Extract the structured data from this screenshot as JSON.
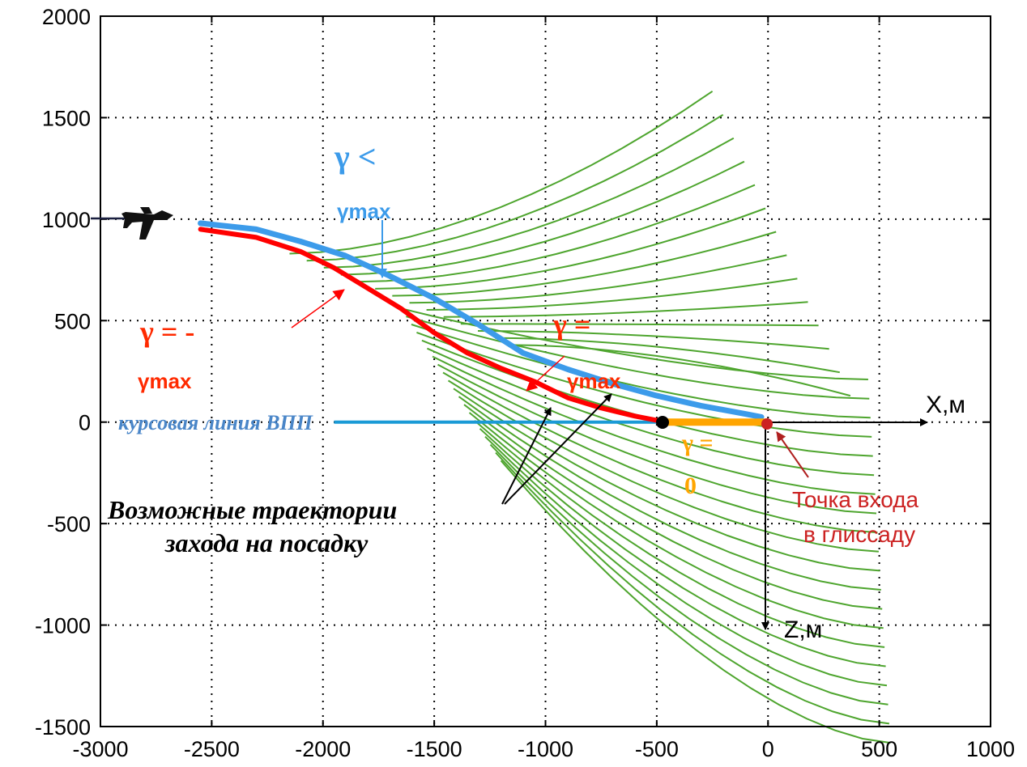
{
  "chart_data": {
    "type": "line",
    "xlim": [
      -3000,
      1000
    ],
    "ylim": [
      -1500,
      2000
    ],
    "x_ticks": [
      "-3000",
      "-2500",
      "-2000",
      "-1500",
      "-1000",
      "-500",
      "0",
      "500",
      "1000"
    ],
    "y_ticks": [
      "2000",
      "1500",
      "1000",
      "500",
      "0",
      "-500",
      "-1000",
      "-1500"
    ],
    "grid": true,
    "x_axis_name": "X,м",
    "z_axis_name": "Z,м",
    "runway_label": "курсовая линия ВПП",
    "runway_line": {
      "x": [
        -1950,
        -460
      ],
      "y": [
        0,
        0
      ]
    },
    "red_path": {
      "x": [
        -2550,
        -2300,
        -2100,
        -1950,
        -1800,
        -1650,
        -1500,
        -1350,
        -1200,
        -1050,
        -900,
        -750,
        -600,
        -460
      ],
      "y": [
        950,
        910,
        840,
        760,
        660,
        560,
        440,
        340,
        265,
        200,
        120,
        70,
        30,
        0
      ]
    },
    "blue_path": {
      "x": [
        -2550,
        -2300,
        -2100,
        -1900,
        -1700,
        -1500,
        -1300,
        -1100,
        -900,
        -700,
        -500,
        -300,
        -100,
        -30
      ],
      "y": [
        980,
        950,
        890,
        820,
        720,
        610,
        480,
        340,
        260,
        190,
        130,
        80,
        40,
        25
      ]
    },
    "orange_segment": {
      "x": [
        -460,
        0
      ],
      "y": [
        0,
        0
      ]
    },
    "fan_upper_count": 14,
    "fan_lower_count": 20,
    "annotations": {
      "gamma_lt_line1": "γ <",
      "gamma_lt_line2": "γmax",
      "gamma_neg_line1": "γ = -",
      "gamma_neg_line2": "γmax",
      "gamma_eq_line1": "γ =",
      "gamma_eq_line2": "γmax",
      "gamma_zero_line1": "γ =",
      "gamma_zero_line2": "0",
      "trajectories_line1": "Возможные траектории",
      "trajectories_line2": "захода на посадку",
      "entry_line1": "Точка входа",
      "entry_line2": "в глиссаду"
    },
    "colors": {
      "red": "#ff0000",
      "blue": "#3c9bea",
      "orange": "#ffa500",
      "green": "#4ea52e",
      "entry_point": "#cc2222",
      "entry_text": "#cc2222",
      "runway_text": "#4a86c8"
    }
  }
}
